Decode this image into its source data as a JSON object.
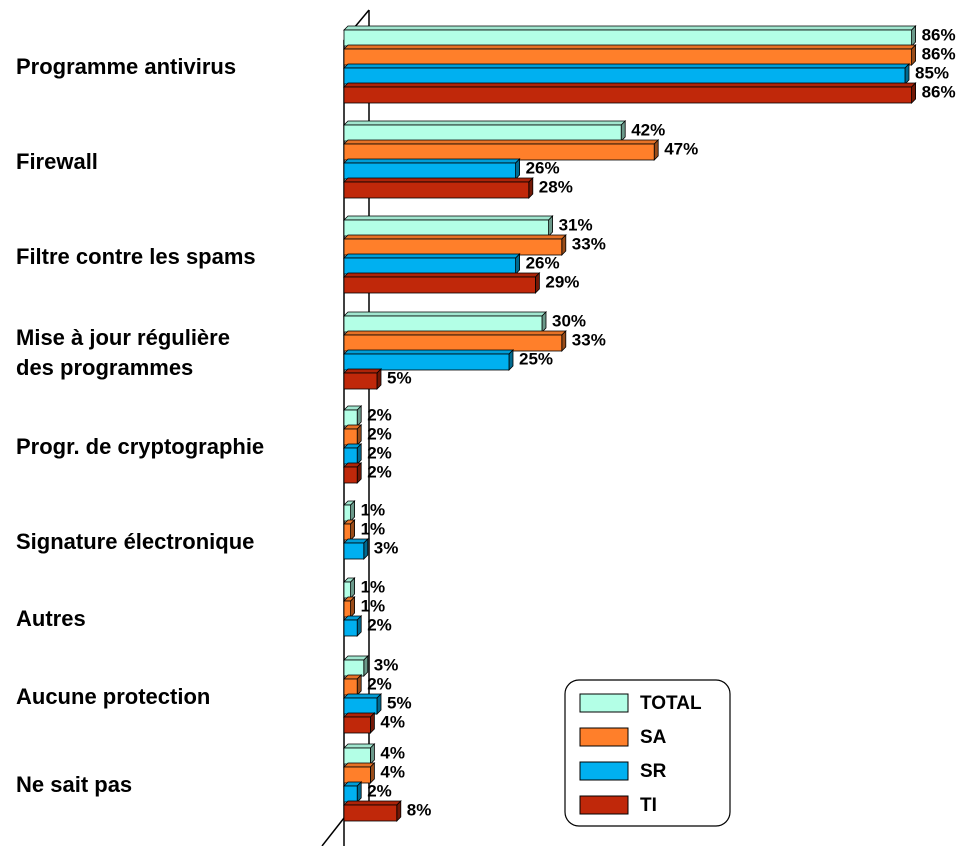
{
  "chart_data": {
    "type": "bar",
    "orientation": "horizontal",
    "categories": [
      "Programme antivirus",
      "Firewall",
      "Filtre contre les spams",
      "Mise à jour régulière\ndes programmes",
      "Progr. de cryptographie",
      "Signature électronique",
      "Autres",
      "Aucune protection",
      "Ne sait pas"
    ],
    "series": [
      {
        "name": "TOTAL",
        "color": "#b3ffe6",
        "values": [
          86,
          42,
          31,
          30,
          2,
          1,
          1,
          3,
          4
        ],
        "value_labels": [
          "86%",
          "42%",
          "31%",
          "30%",
          "2%",
          "1%",
          "1%",
          "3%",
          "4%"
        ]
      },
      {
        "name": "SA",
        "color": "#ff7f2a",
        "values": [
          86,
          47,
          33,
          33,
          2,
          1,
          1,
          2,
          4
        ],
        "value_labels": [
          "86%",
          "47%",
          "33%",
          "33%",
          "2%",
          "1%",
          "1%",
          "2%",
          "4%"
        ]
      },
      {
        "name": "SR",
        "color": "#00b0f0",
        "values": [
          85,
          26,
          26,
          25,
          2,
          3,
          2,
          5,
          2
        ],
        "value_labels": [
          "85%",
          "26%",
          "26%",
          "25%",
          "2%",
          "3%",
          "2%",
          "5%",
          "2%"
        ]
      },
      {
        "name": "TI",
        "color": "#c0280a",
        "values": [
          86,
          28,
          29,
          5,
          2,
          null,
          null,
          4,
          8
        ],
        "value_labels": [
          "86%",
          "28%",
          "29%",
          "5%",
          "2%",
          null,
          null,
          "4%",
          "8%"
        ]
      }
    ],
    "legend": "bottom-right"
  }
}
